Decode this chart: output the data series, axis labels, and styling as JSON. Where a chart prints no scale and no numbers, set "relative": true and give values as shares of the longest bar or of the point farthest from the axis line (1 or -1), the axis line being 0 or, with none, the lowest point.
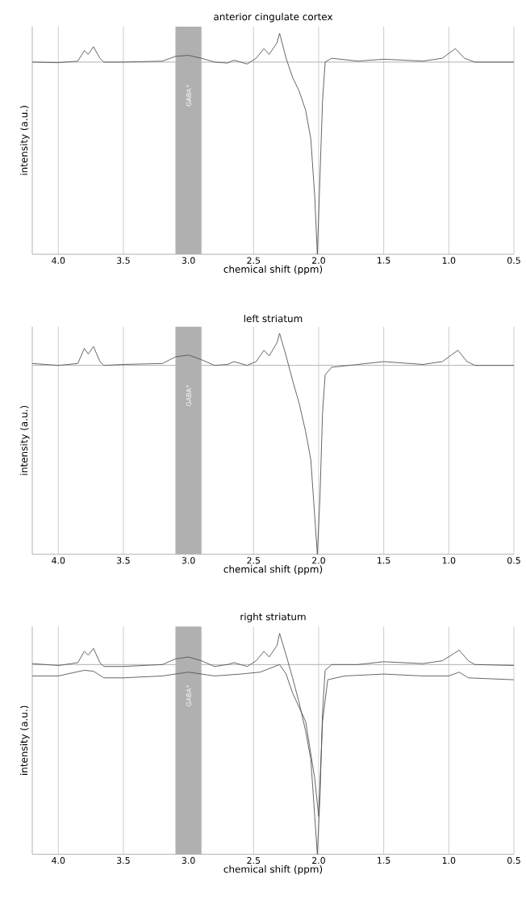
{
  "chart_data": [
    {
      "type": "line",
      "title": "anterior cingulate cortex",
      "xlabel": "chemical shift (ppm)",
      "ylabel": "intensity (a.u.)",
      "relative": true,
      "xlim": [
        4.2,
        0.5
      ],
      "xticks": [
        {
          "value": 4,
          "label": "4.0"
        },
        {
          "value": 3.5,
          "label": "3.5"
        },
        {
          "value": 3,
          "label": "3.0"
        },
        {
          "value": 2.5,
          "label": "2.5"
        },
        {
          "value": 2,
          "label": "2.0"
        },
        {
          "value": 1.5,
          "label": "1.5"
        },
        {
          "value": 1,
          "label": "1.0"
        },
        {
          "value": 0.5,
          "label": "0.5"
        }
      ],
      "tick_labels": "x",
      "grid": "x",
      "ref_lines": [
        {
          "axis": "y",
          "value": 0,
          "color": "#b0b0b0"
        }
      ],
      "bands": [
        {
          "axis": "x",
          "from": 3.1,
          "to": 2.9,
          "label": "GABA$^{+}$",
          "color": "#b0b0b0"
        }
      ],
      "series": [
        {
          "color": "#555555",
          "x": [
            4.2,
            4.0,
            3.85,
            3.8,
            3.77,
            3.73,
            3.68,
            3.65,
            3.5,
            3.2,
            3.1,
            3.0,
            2.9,
            2.8,
            2.7,
            2.65,
            2.55,
            2.48,
            2.42,
            2.38,
            2.32,
            2.3,
            2.25,
            2.2,
            2.15,
            2.1,
            2.06,
            2.03,
            2.01,
            1.99,
            1.97,
            1.95,
            1.9,
            1.7,
            1.5,
            1.2,
            1.05,
            0.95,
            0.88,
            0.8,
            0.5
          ],
          "values": [
            0.0,
            -0.003,
            0.005,
            0.06,
            0.04,
            0.08,
            0.02,
            0.0,
            0.0,
            0.005,
            0.03,
            0.035,
            0.02,
            0.0,
            -0.005,
            0.01,
            -0.01,
            0.02,
            0.07,
            0.04,
            0.1,
            0.15,
            0.02,
            -0.08,
            -0.15,
            -0.25,
            -0.4,
            -0.7,
            -1.0,
            -0.6,
            -0.2,
            0.0,
            0.02,
            0.005,
            0.015,
            0.005,
            0.02,
            0.07,
            0.02,
            0.0,
            0.0
          ]
        }
      ]
    },
    {
      "type": "line",
      "title": "left striatum",
      "xlabel": "chemical shift (ppm)",
      "ylabel": "intensity (a.u.)",
      "relative": true,
      "xlim": [
        4.2,
        0.5
      ],
      "xticks": [
        {
          "value": 4,
          "label": "4.0"
        },
        {
          "value": 3.5,
          "label": "3.5"
        },
        {
          "value": 3,
          "label": "3.0"
        },
        {
          "value": 2.5,
          "label": "2.5"
        },
        {
          "value": 2,
          "label": "2.0"
        },
        {
          "value": 1.5,
          "label": "1.5"
        },
        {
          "value": 1,
          "label": "1.0"
        },
        {
          "value": 0.5,
          "label": "0.5"
        }
      ],
      "tick_labels": "x",
      "grid": "x",
      "ref_lines": [
        {
          "axis": "y",
          "value": 0,
          "color": "#b0b0b0"
        }
      ],
      "bands": [
        {
          "axis": "x",
          "from": 3.1,
          "to": 2.9,
          "label": "GABA$^{+}$",
          "color": "#b0b0b0"
        }
      ],
      "series": [
        {
          "color": "#555555",
          "x": [
            4.2,
            4.0,
            3.85,
            3.8,
            3.77,
            3.73,
            3.68,
            3.65,
            3.5,
            3.2,
            3.1,
            3.0,
            2.9,
            2.8,
            2.7,
            2.65,
            2.55,
            2.48,
            2.42,
            2.38,
            2.32,
            2.3,
            2.25,
            2.2,
            2.15,
            2.1,
            2.06,
            2.03,
            2.01,
            1.99,
            1.97,
            1.95,
            1.9,
            1.7,
            1.5,
            1.2,
            1.05,
            0.93,
            0.86,
            0.8,
            0.5
          ],
          "values": [
            0.01,
            0.0,
            0.01,
            0.09,
            0.06,
            0.1,
            0.02,
            0.0,
            0.005,
            0.01,
            0.045,
            0.055,
            0.03,
            0.0,
            0.005,
            0.02,
            0.0,
            0.02,
            0.08,
            0.05,
            0.12,
            0.17,
            0.05,
            -0.08,
            -0.2,
            -0.35,
            -0.5,
            -0.8,
            -1.0,
            -0.7,
            -0.25,
            -0.05,
            -0.01,
            0.005,
            0.02,
            0.005,
            0.02,
            0.08,
            0.02,
            0.0,
            0.0
          ]
        }
      ]
    },
    {
      "type": "line",
      "title": "right striatum",
      "xlabel": "chemical shift (ppm)",
      "ylabel": "intensity (a.u.)",
      "relative": true,
      "xlim": [
        4.2,
        0.5
      ],
      "xticks": [
        {
          "value": 4,
          "label": "4.0"
        },
        {
          "value": 3.5,
          "label": "3.5"
        },
        {
          "value": 3,
          "label": "3.0"
        },
        {
          "value": 2.5,
          "label": "2.5"
        },
        {
          "value": 2,
          "label": "2.0"
        },
        {
          "value": 1.5,
          "label": "1.5"
        },
        {
          "value": 1,
          "label": "1.0"
        },
        {
          "value": 0.5,
          "label": "0.5"
        }
      ],
      "tick_labels": "x",
      "grid": "x",
      "ref_lines": [
        {
          "axis": "y",
          "value": 0,
          "color": "#b0b0b0"
        }
      ],
      "bands": [
        {
          "axis": "x",
          "from": 3.1,
          "to": 2.9,
          "label": "GABA$^{+}$",
          "color": "#b0b0b0"
        }
      ],
      "series": [
        {
          "color": "#555555",
          "x": [
            4.2,
            4.0,
            3.85,
            3.8,
            3.77,
            3.73,
            3.68,
            3.65,
            3.5,
            3.2,
            3.1,
            3.0,
            2.9,
            2.8,
            2.7,
            2.65,
            2.55,
            2.48,
            2.42,
            2.38,
            2.32,
            2.3,
            2.25,
            2.2,
            2.15,
            2.1,
            2.06,
            2.03,
            2.01,
            1.99,
            1.97,
            1.95,
            1.9,
            1.7,
            1.5,
            1.2,
            1.05,
            0.92,
            0.85,
            0.8,
            0.5
          ],
          "values": [
            0.005,
            -0.005,
            0.01,
            0.07,
            0.05,
            0.085,
            0.01,
            -0.01,
            -0.01,
            0.0,
            0.03,
            0.04,
            0.02,
            -0.01,
            0.0,
            0.01,
            -0.01,
            0.02,
            0.07,
            0.04,
            0.1,
            0.165,
            0.05,
            -0.07,
            -0.2,
            -0.35,
            -0.5,
            -0.8,
            -1.0,
            -0.7,
            -0.25,
            -0.03,
            0.0,
            0.0,
            0.015,
            0.005,
            0.02,
            0.076,
            0.02,
            0.0,
            -0.005
          ]
        },
        {
          "color": "#555555",
          "x": [
            4.2,
            4.0,
            3.8,
            3.73,
            3.65,
            3.5,
            3.2,
            3.0,
            2.8,
            2.6,
            2.45,
            2.3,
            2.25,
            2.2,
            2.1,
            2.03,
            2.0,
            1.97,
            1.93,
            1.8,
            1.5,
            1.2,
            1.0,
            0.92,
            0.85,
            0.5
          ],
          "values": [
            -0.06,
            -0.06,
            -0.03,
            -0.035,
            -0.07,
            -0.07,
            -0.06,
            -0.04,
            -0.06,
            -0.05,
            -0.04,
            0.0,
            -0.05,
            -0.15,
            -0.3,
            -0.6,
            -0.8,
            -0.3,
            -0.08,
            -0.06,
            -0.05,
            -0.06,
            -0.06,
            -0.04,
            -0.07,
            -0.08
          ]
        }
      ]
    }
  ]
}
